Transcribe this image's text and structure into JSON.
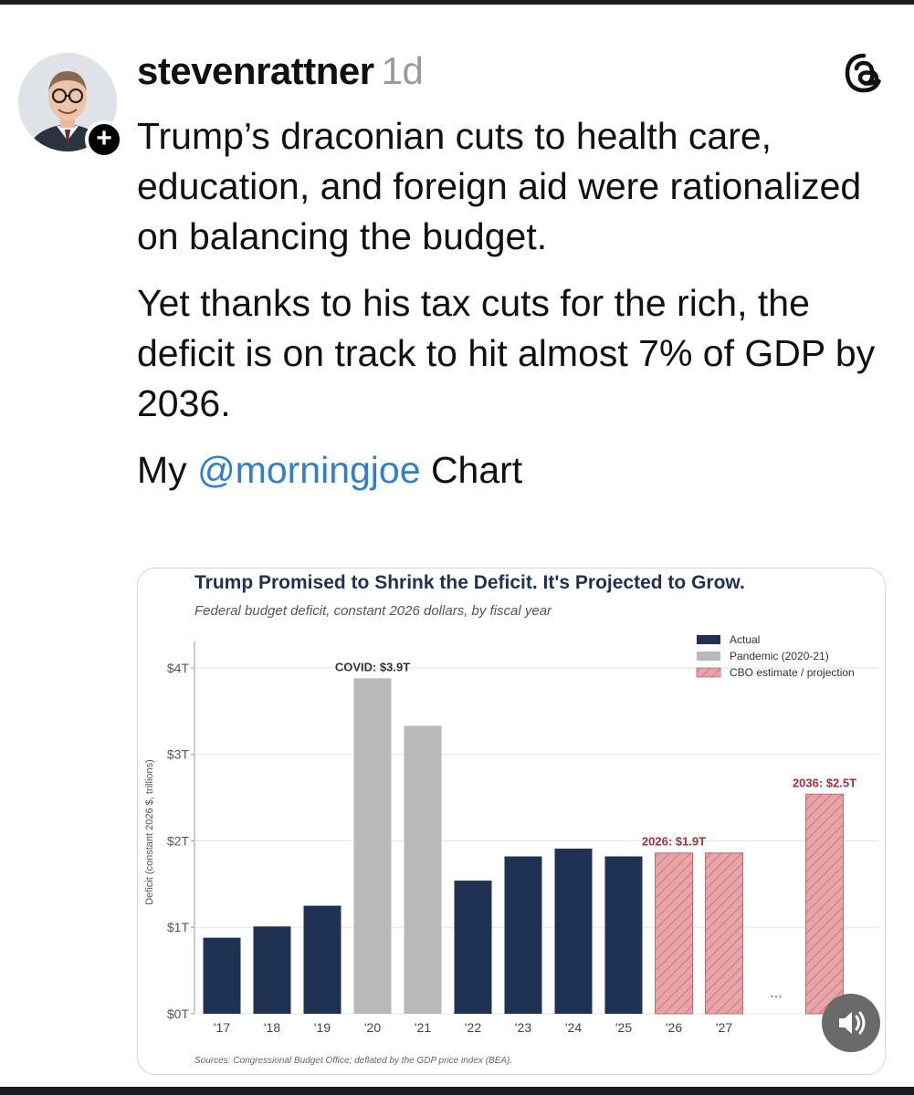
{
  "post": {
    "username": "stevenrattner",
    "time_ago": "1d",
    "paragraphs": [
      "Trump’s draconian cuts to health care, education, and foreign aid were rationalized on balancing the budget.",
      "Yet thanks to his tax cuts for the rich, the deficit is on track to hit almost 7% of GDP by 2036."
    ],
    "caption_prefix": "My",
    "mention": "@morningjoe",
    "caption_suffix": "Chart",
    "follow_symbol": "+"
  },
  "icons": {
    "threads": "threads-logo-icon",
    "follow": "plus-icon",
    "sound": "speaker-icon"
  },
  "colors": {
    "actual": "#1f3253",
    "pandemic": "#b9b9b9",
    "projection": "#e8a5a8",
    "projection_hatch": "#c46a70",
    "annotation_red": "#a3323a",
    "title": "#1f3253",
    "mention": "#2e7fcf"
  },
  "chart_data": {
    "type": "bar",
    "title": "Trump Promised to Shrink the Deficit. It's Projected to Grow.",
    "subtitle": "Federal budget deficit, constant 2026 dollars, by fiscal year",
    "ylabel": "Deficit (constant 2026 $, trillions)",
    "xlabel": "",
    "ylim": [
      0,
      4.2
    ],
    "yticks": [
      {
        "value": 0,
        "label": "$0T"
      },
      {
        "value": 1,
        "label": "$1T"
      },
      {
        "value": 2,
        "label": "$2T"
      },
      {
        "value": 3,
        "label": "$3T"
      },
      {
        "value": 4,
        "label": "$4T"
      }
    ],
    "grid": true,
    "legend_position": "top-right",
    "legend": [
      {
        "label": "Actual",
        "kind": "actual"
      },
      {
        "label": "Pandemic (2020-21)",
        "kind": "pandemic"
      },
      {
        "label": "CBO estimate / projection",
        "kind": "projection"
      }
    ],
    "bars": [
      {
        "category": "'17",
        "value": 0.88,
        "kind": "actual"
      },
      {
        "category": "'18",
        "value": 1.01,
        "kind": "actual"
      },
      {
        "category": "'19",
        "value": 1.25,
        "kind": "actual"
      },
      {
        "category": "'20",
        "value": 3.88,
        "kind": "pandemic"
      },
      {
        "category": "'21",
        "value": 3.33,
        "kind": "pandemic"
      },
      {
        "category": "'22",
        "value": 1.54,
        "kind": "actual"
      },
      {
        "category": "'23",
        "value": 1.82,
        "kind": "actual"
      },
      {
        "category": "'24",
        "value": 1.91,
        "kind": "actual"
      },
      {
        "category": "'25",
        "value": 1.82,
        "kind": "actual"
      },
      {
        "category": "'26",
        "value": 1.86,
        "kind": "projection"
      },
      {
        "category": "'27",
        "value": 1.86,
        "kind": "projection"
      },
      {
        "category": "",
        "value": null,
        "kind": "gap",
        "label": "..."
      },
      {
        "category": "",
        "value": 2.54,
        "kind": "projection"
      }
    ],
    "annotations": [
      {
        "text": "COVID: $3.9T",
        "bar_index": 3,
        "style": "dark"
      },
      {
        "text": "2026: $1.9T",
        "bar_index": 9,
        "style": "red"
      },
      {
        "text": "2036: $2.5T",
        "bar_index": 12,
        "style": "red"
      }
    ],
    "source": "Sources: Congressional Budget Office; deflated by the GDP price index (BEA)."
  }
}
